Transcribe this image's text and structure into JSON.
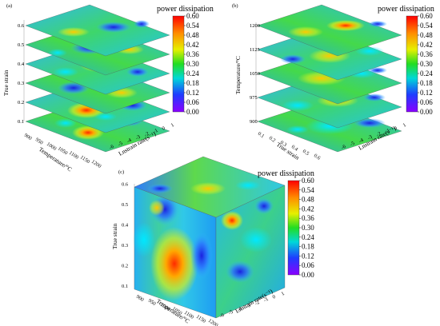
{
  "chart_data": [
    {
      "panel_label": "(a)",
      "type": "heatmap",
      "colorbar": {
        "title": "power dissipation",
        "ticks": [
          "0.60",
          "0.54",
          "0.48",
          "0.42",
          "0.36",
          "0.30",
          "0.24",
          "0.18",
          "0.12",
          "0.06",
          "0.00"
        ],
        "range": [
          0,
          0.6
        ]
      },
      "vertical_axis": {
        "label": "True strain",
        "ticks": [
          "0.1",
          "0.2",
          "0.3",
          "0.4",
          "0.5",
          "0.6"
        ]
      },
      "left_axis": {
        "label": "Temperature/°C",
        "ticks": [
          "900",
          "950",
          "1000",
          "1050",
          "1100",
          "1150",
          "1200"
        ]
      },
      "right_axis": {
        "label": "Lnstrain rate(s⁻¹)",
        "ticks": [
          "-6",
          "-5",
          "-4",
          "-3",
          "-2",
          "-1",
          "0",
          "1"
        ]
      },
      "slices": [
        "0.1",
        "0.2",
        "0.3",
        "0.4",
        "0.5",
        "0.6"
      ]
    },
    {
      "panel_label": "(b)",
      "type": "heatmap",
      "colorbar": {
        "title": "power dissipation",
        "ticks": [
          "0.60",
          "0.54",
          "0.48",
          "0.42",
          "0.36",
          "0.30",
          "0.24",
          "0.18",
          "0.12",
          "0.06",
          "0.00"
        ],
        "range": [
          0,
          0.6
        ]
      },
      "vertical_axis": {
        "label": "Temperature/°C",
        "ticks": [
          "900",
          "975",
          "1050",
          "1125",
          "1200"
        ]
      },
      "left_axis": {
        "label": "True strain",
        "ticks": [
          "0.1",
          "0.2",
          "0.3",
          "0.4",
          "0.5",
          "0.6"
        ]
      },
      "right_axis": {
        "label": "Lnstrain rate(s⁻¹)",
        "ticks": [
          "-6",
          "-5",
          "-4",
          "-3",
          "-2",
          "-1",
          "0",
          "1"
        ]
      },
      "slices": [
        "900",
        "975",
        "1050",
        "1125",
        "1200"
      ]
    },
    {
      "panel_label": "(c)",
      "type": "heatmap",
      "colorbar": {
        "title": "power dissipation",
        "ticks": [
          "0.60",
          "0.54",
          "0.48",
          "0.42",
          "0.36",
          "0.30",
          "0.24",
          "0.18",
          "0.12",
          "0.06",
          "0.00"
        ],
        "range": [
          0,
          0.6
        ]
      },
      "vertical_axis": {
        "label": "True strain",
        "ticks": [
          "0.1",
          "0.2",
          "0.3",
          "0.4",
          "0.5",
          "0.6"
        ]
      },
      "left_axis": {
        "label": "Temperature/°C",
        "ticks": [
          "900",
          "950",
          "1000",
          "1050",
          "1100",
          "1150",
          "1200"
        ]
      },
      "right_axis": {
        "label": "Lnstrain rate(s⁻¹)",
        "ticks": [
          "-6",
          "-5",
          "-4",
          "-3",
          "-2",
          "-1",
          "0",
          "1"
        ]
      },
      "slices": []
    }
  ]
}
